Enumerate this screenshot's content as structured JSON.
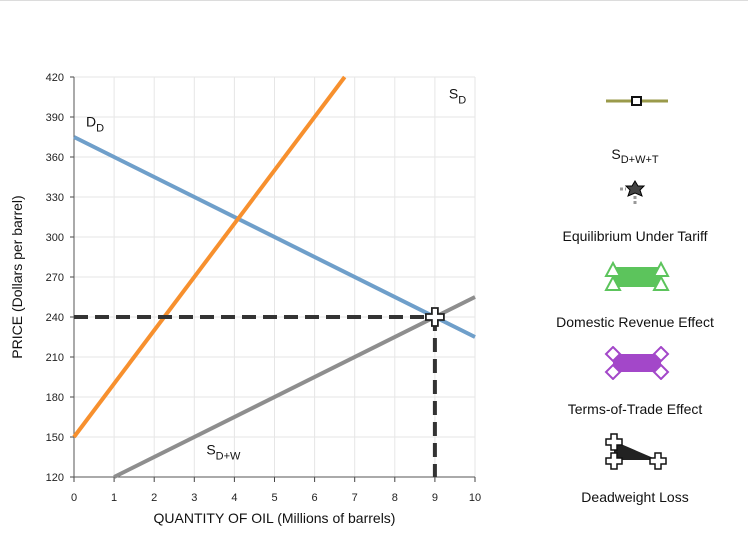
{
  "chart_data": {
    "type": "line",
    "xlabel": "QUANTITY OF OIL (Millions of barrels)",
    "ylabel": "PRICE (Dollars per barrel)",
    "xlim": [
      0,
      10
    ],
    "ylim": [
      120,
      420
    ],
    "xticks": [
      "0",
      "1",
      "2",
      "3",
      "4",
      "5",
      "6",
      "7",
      "8",
      "9",
      "10"
    ],
    "yticks": [
      "120",
      "150",
      "180",
      "210",
      "240",
      "270",
      "300",
      "330",
      "360",
      "390",
      "420"
    ],
    "grid": true,
    "series": [
      {
        "name": "D",
        "sub": "D",
        "color": "#6f9fca",
        "points": [
          [
            0,
            375
          ],
          [
            10,
            225
          ]
        ]
      },
      {
        "name": "S",
        "sub": "D",
        "color": "#f7902e",
        "points": [
          [
            0,
            150
          ],
          [
            6.75,
            420
          ]
        ]
      },
      {
        "name": "S",
        "sub": "D+W",
        "color": "#8e8e8e",
        "points": [
          [
            1,
            120
          ],
          [
            10,
            255
          ]
        ]
      }
    ],
    "tariff_price": 240,
    "tariff_quantity": 9,
    "equilibrium_point": [
      9,
      240
    ]
  },
  "legend": {
    "items": [
      {
        "label": "S",
        "sub": "D+W+T",
        "icon": "olive-line-square-marker-icon",
        "color": "#9a9a4a"
      },
      {
        "label": "Equilibrium Under Tariff",
        "icon": "star-marker-icon",
        "color": "#444444"
      },
      {
        "label": "Domestic Revenue Effect",
        "icon": "green-triangle-polygon-icon",
        "color": "#5cc45c"
      },
      {
        "label": "Terms-of-Trade Effect",
        "icon": "purple-diamond-polygon-icon",
        "color": "#a347c9"
      },
      {
        "label": "Deadweight Loss",
        "icon": "black-cross-triangle-icon",
        "color": "#222222"
      }
    ]
  }
}
